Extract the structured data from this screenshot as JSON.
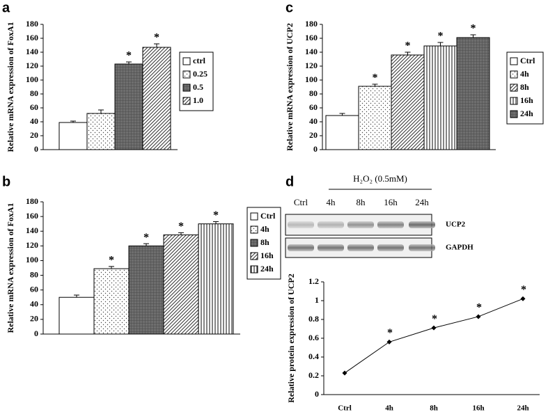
{
  "chart_data": [
    {
      "type": "bar",
      "panel": "a",
      "ylabel": "Relative mRNA expression of FoxA1",
      "categories": [
        "ctrl",
        "0.25",
        "0.5",
        "1.0"
      ],
      "values": [
        39,
        52,
        123,
        147
      ],
      "errors": [
        2,
        5,
        3,
        5
      ],
      "significant": [
        false,
        false,
        true,
        true
      ],
      "sig_label": "*",
      "patterns": [
        "white",
        "dots",
        "crosshatch",
        "diag"
      ],
      "ylim": [
        0,
        180
      ],
      "yticks": [
        0,
        20,
        40,
        60,
        80,
        100,
        120,
        140,
        160,
        180
      ]
    },
    {
      "type": "bar",
      "panel": "b",
      "ylabel": "Relative mRNA expression of FoxA1",
      "categories": [
        "Ctrl",
        "4h",
        "8h",
        "16h",
        "24h"
      ],
      "values": [
        50,
        89,
        120,
        135,
        150
      ],
      "errors": [
        3,
        3,
        3,
        3,
        3
      ],
      "significant": [
        false,
        true,
        true,
        true,
        true
      ],
      "sig_label": "*",
      "patterns": [
        "white",
        "dots",
        "crosshatch",
        "diag",
        "vertical"
      ],
      "ylim": [
        0,
        180
      ],
      "yticks": [
        0,
        20,
        40,
        60,
        80,
        100,
        120,
        140,
        160,
        180
      ]
    },
    {
      "type": "bar",
      "panel": "c",
      "ylabel": "Relative mRNA expression of UCP2",
      "categories": [
        "Ctrl",
        "4h",
        "8h",
        "16h",
        "24h"
      ],
      "values": [
        49,
        91,
        136,
        149,
        161
      ],
      "errors": [
        3,
        3,
        4,
        5,
        4
      ],
      "significant": [
        false,
        true,
        true,
        true,
        true
      ],
      "sig_label": "*",
      "patterns": [
        "white",
        "dots",
        "diag",
        "vertical",
        "crosshatch"
      ],
      "ylim": [
        0,
        180
      ],
      "yticks": [
        0,
        20,
        40,
        60,
        80,
        100,
        120,
        140,
        160,
        180
      ]
    },
    {
      "type": "line",
      "panel": "d",
      "ylabel": "Relative protein expression of UCP2",
      "categories": [
        "Ctrl",
        "4h",
        "8h",
        "16h",
        "24h"
      ],
      "values": [
        0.23,
        0.56,
        0.71,
        0.83,
        1.02
      ],
      "significant": [
        false,
        true,
        true,
        true,
        true
      ],
      "sig_label": "*",
      "color": "#000000",
      "ylim": [
        0,
        1.2
      ],
      "yticks": [
        0,
        0.2,
        0.4,
        0.6,
        0.8,
        1,
        1.2
      ],
      "blot": {
        "treatment": "H₂O₂ (0.5mM)",
        "bands": [
          "UCP2",
          "GAPDH"
        ]
      }
    }
  ]
}
